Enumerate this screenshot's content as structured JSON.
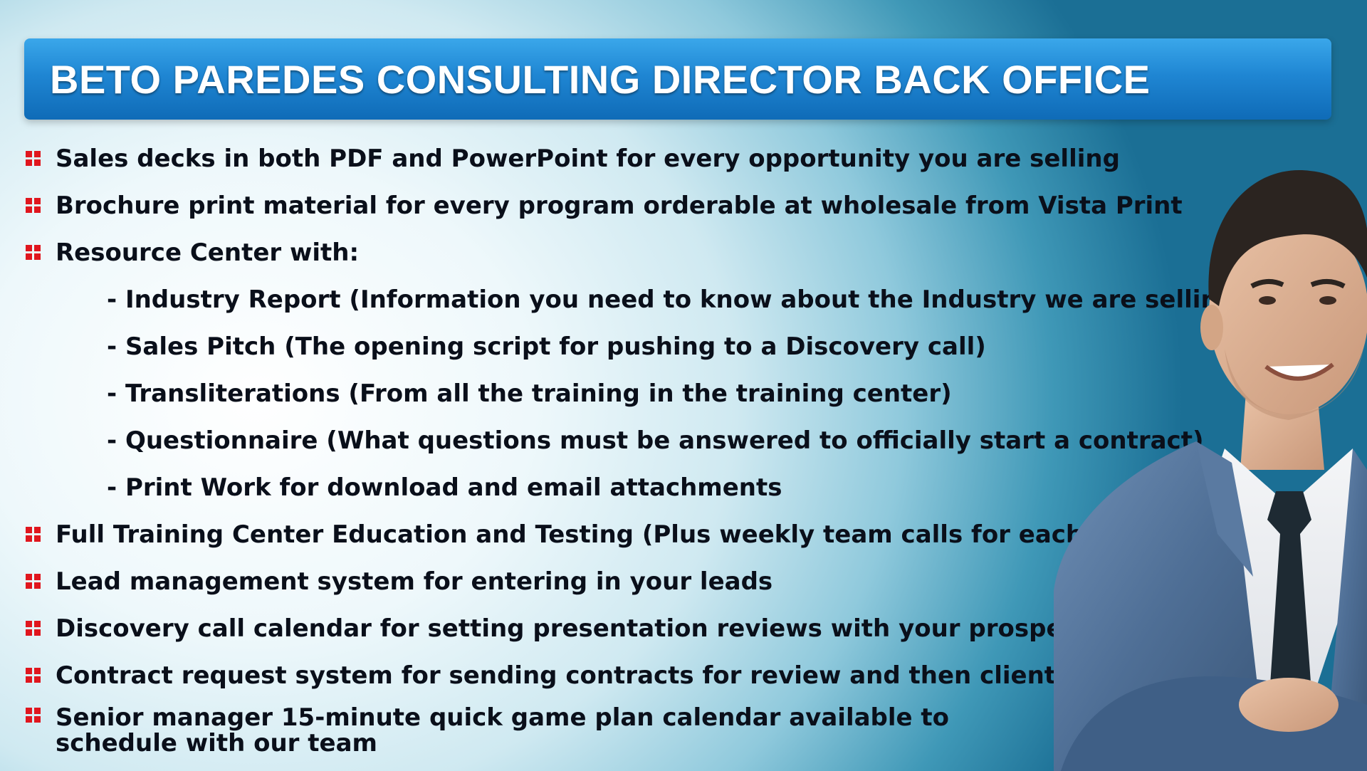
{
  "slide": {
    "title": "BETO PAREDES CONSULTING DIRECTOR BACK OFFICE",
    "items": [
      {
        "level": "main",
        "text": "Sales decks in both PDF and PowerPoint for every opportunity you are selling"
      },
      {
        "level": "main",
        "text": "Brochure print material for every program orderable at wholesale from Vista Print"
      },
      {
        "level": "main",
        "text": "Resource Center with:"
      },
      {
        "level": "sub",
        "text": "- Industry Report (Information you need to know about the Industry we are selling in)"
      },
      {
        "level": "sub",
        "text": "- Sales Pitch (The opening script for pushing to a Discovery call)"
      },
      {
        "level": "sub",
        "text": "- Transliterations (From all the training in the training center)"
      },
      {
        "level": "sub",
        "text": "- Questionnaire (What questions must be answered to officially start a contract)"
      },
      {
        "level": "sub",
        "text": "- Print Work for download and email attachments"
      },
      {
        "level": "main",
        "text": "Full Training Center Education and Testing (Plus weekly team calls for each platform)"
      },
      {
        "level": "main",
        "text": "Lead management system for entering in your leads"
      },
      {
        "level": "main",
        "text": "Discovery call calendar for setting presentation reviews with your prospects"
      },
      {
        "level": "main",
        "text": "Contract request system for sending contracts for review and then client signature"
      },
      {
        "level": "main",
        "text": "Senior manager 15-minute quick game plan calendar available to schedule with our team"
      }
    ]
  },
  "colors": {
    "title_bar": "#1f86d3",
    "bullet_marker": "#e0161e",
    "body_text": "#0a0f1a"
  },
  "icons": {
    "bullet": "red-four-square-bullet-icon"
  }
}
